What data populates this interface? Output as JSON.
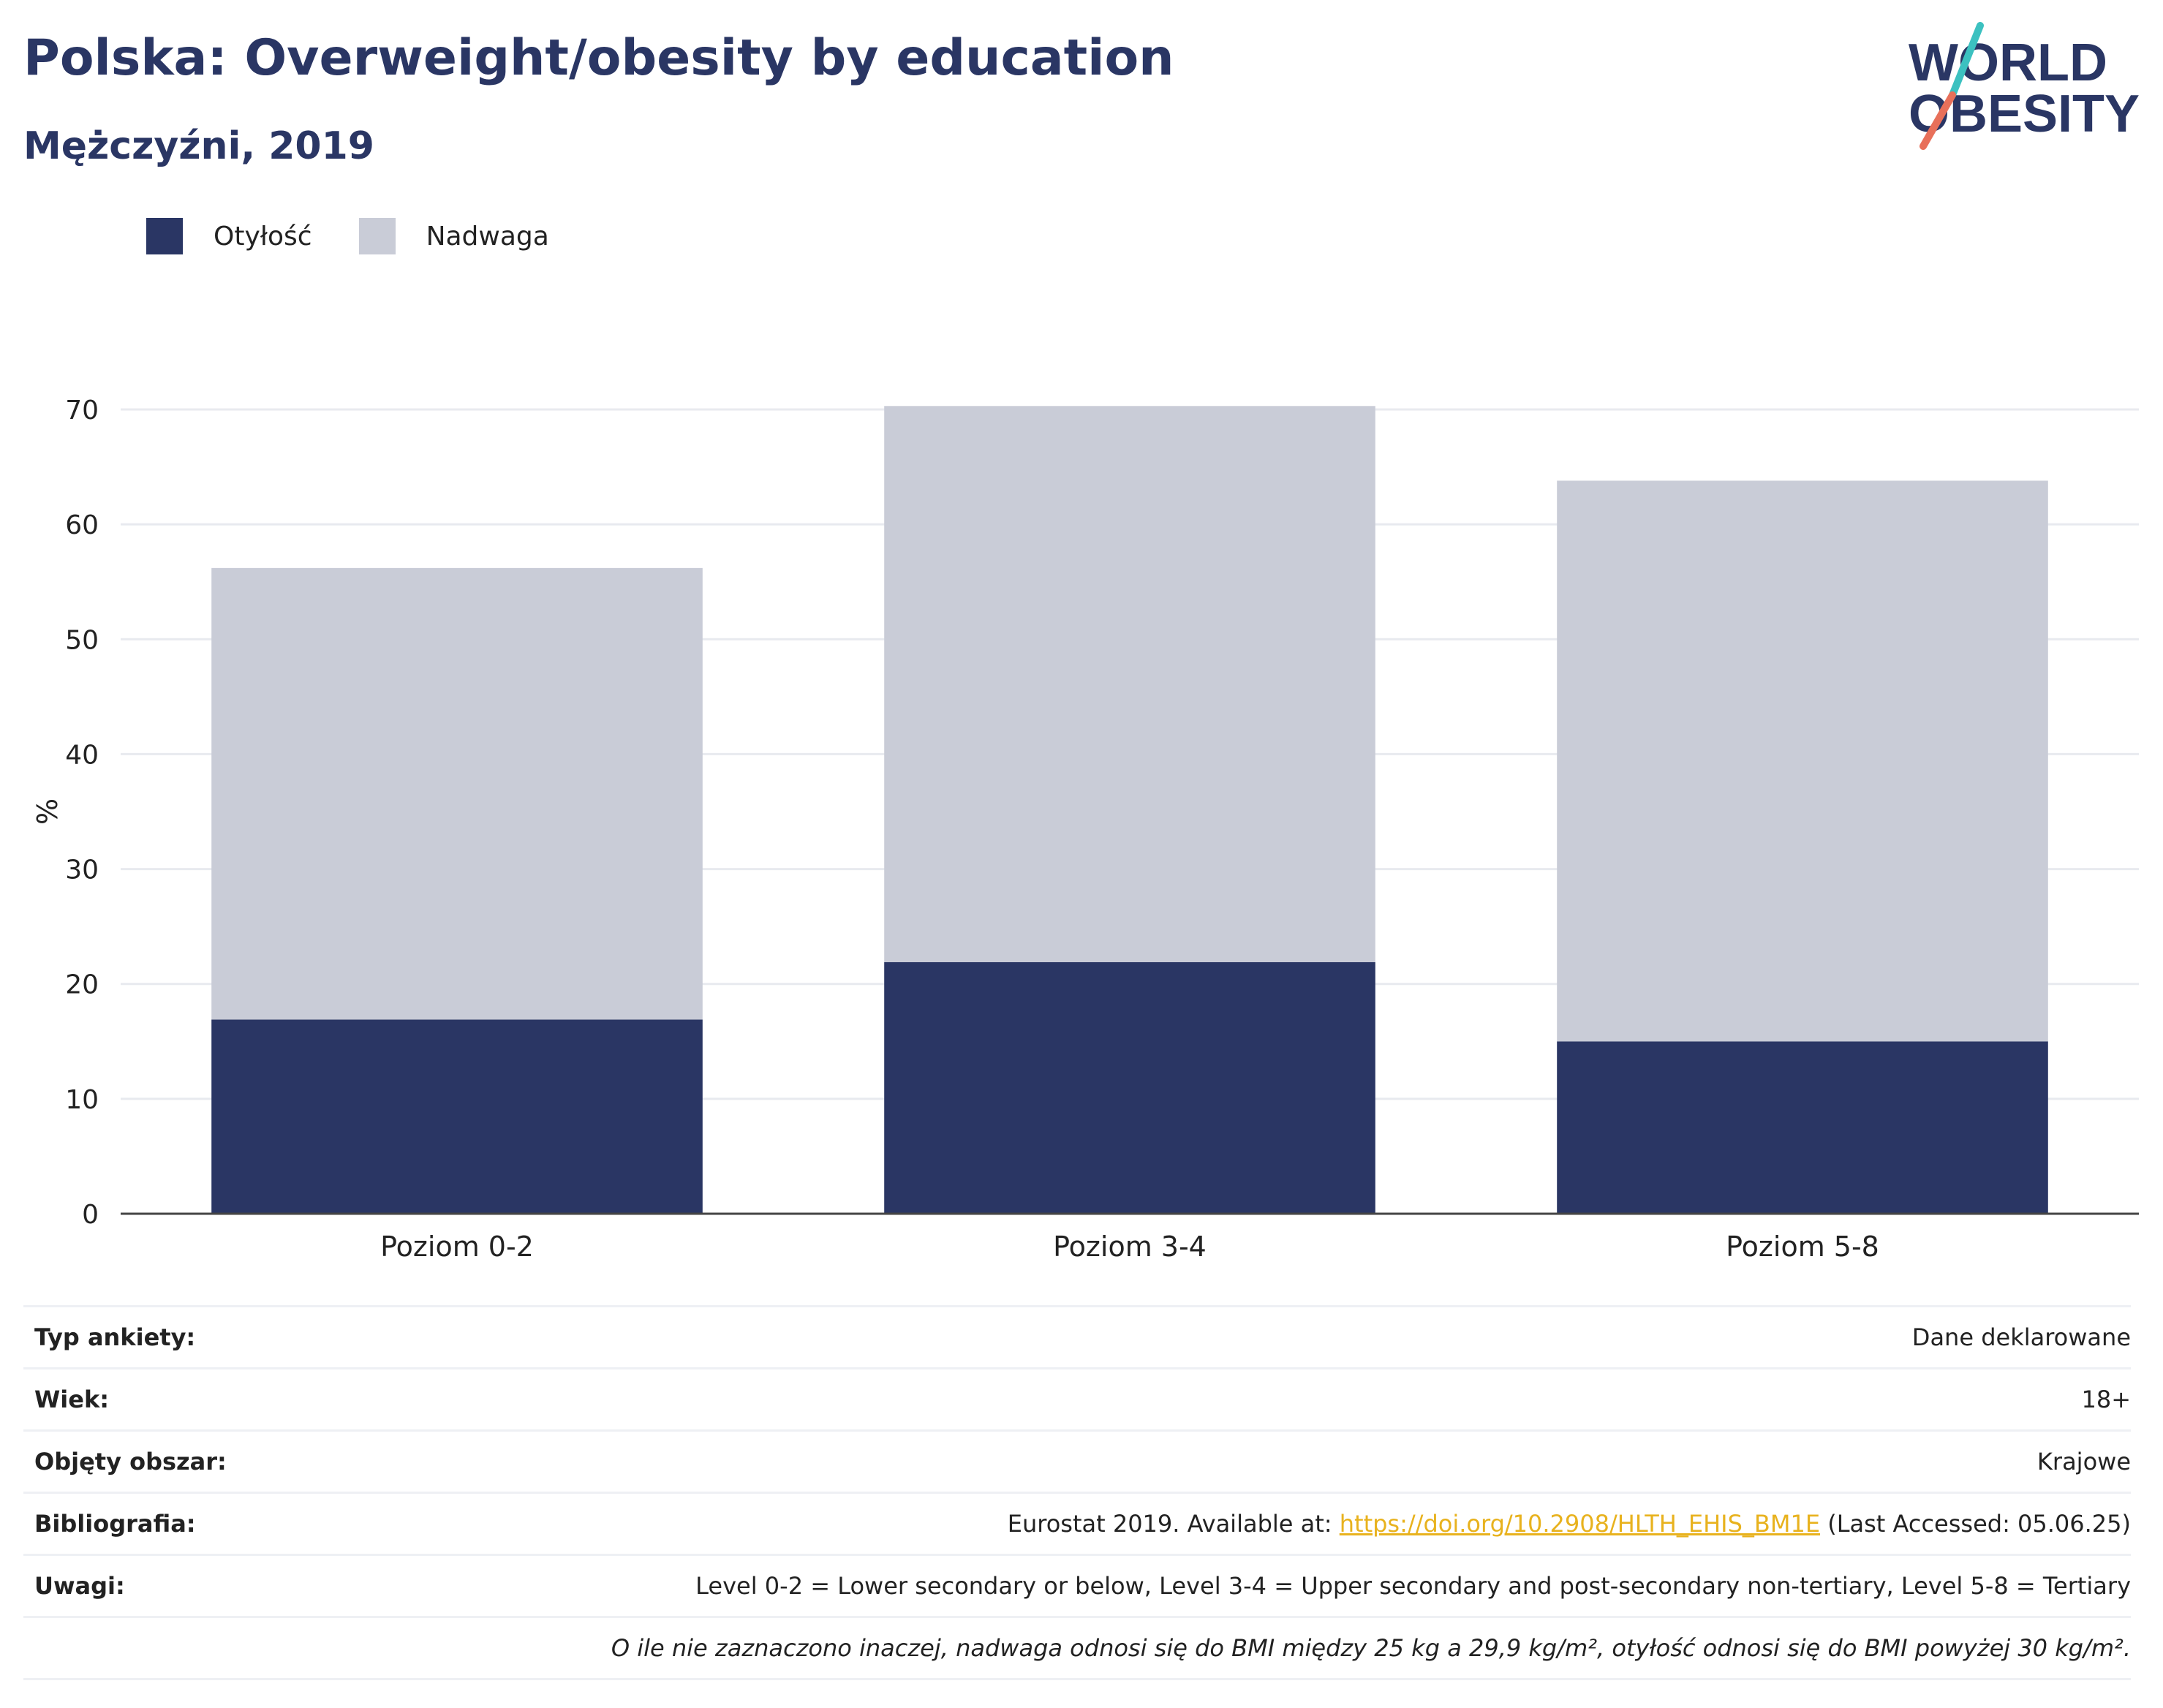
{
  "header": {
    "title": "Polska: Overweight/obesity by education",
    "subtitle": "Mężczyźni, 2019"
  },
  "logo": {
    "line1": "WORLD",
    "line2": "OBESITY"
  },
  "colors": {
    "obesity": "#2a3664",
    "overweight": "#c9ccd7",
    "text": "#2a3664",
    "link": "#e8b21e"
  },
  "legend": [
    {
      "label": "Otyłość",
      "color": "#2a3664"
    },
    {
      "label": "Nadwaga",
      "color": "#c9ccd7"
    }
  ],
  "chart_data": {
    "type": "bar",
    "stacked": true,
    "categories": [
      "Poziom 0-2",
      "Poziom 3-4",
      "Poziom 5-8"
    ],
    "series": [
      {
        "name": "Otyłość",
        "values": [
          16.9,
          21.9,
          15.0
        ]
      },
      {
        "name": "Nadwaga",
        "values": [
          39.3,
          48.4,
          48.8
        ]
      }
    ],
    "ylabel": "%",
    "ylim": [
      0,
      70
    ],
    "yticks": [
      0,
      10,
      20,
      30,
      40,
      50,
      60,
      70
    ],
    "grid": true,
    "legend_position": "top-left"
  },
  "info": {
    "survey_label": "Typ ankiety:",
    "survey_value": "Dane deklarowane",
    "age_label": "Wiek:",
    "age_value": "18+",
    "area_label": "Objęty obszar:",
    "area_value": "Krajowe",
    "bib_label": "Bibliografia:",
    "bib_prefix": "Eurostat 2019. Available at: ",
    "bib_link": "https://doi.org/10.2908/HLTH_EHIS_BM1E",
    "bib_suffix": " (Last Accessed: 05.06.25)",
    "notes_label": "Uwagi:",
    "notes_value": "Level 0-2 = Lower secondary or below, Level 3-4 = Upper secondary and post-secondary non-tertiary, Level 5-8 = Tertiary",
    "footnote": "O ile nie zaznaczono inaczej, nadwaga odnosi się do BMI między 25 kg a 29,9 kg/m², otyłość odnosi się do BMI powyżej 30 kg/m²."
  }
}
